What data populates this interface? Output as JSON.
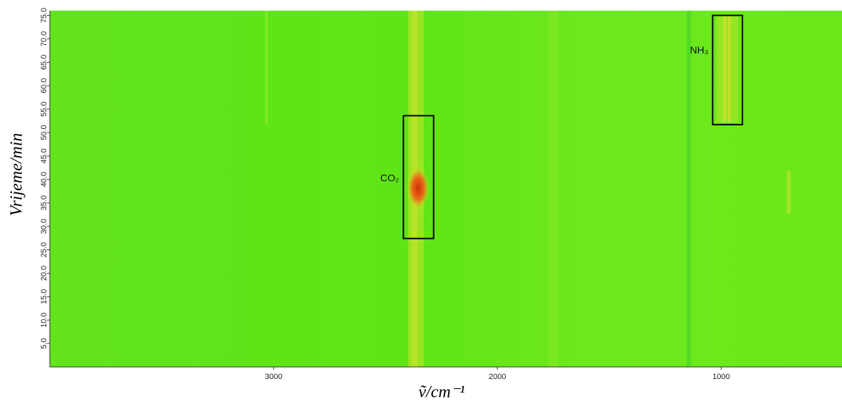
{
  "chart_data": {
    "type": "heatmap",
    "xlabel": "ṽ/cm⁻¹",
    "ylabel": "Vrijeme/min",
    "xlim": [
      4000,
      460
    ],
    "xticks": [
      3000,
      2000,
      1000
    ],
    "ylim": [
      0,
      76
    ],
    "yticks": [
      {
        "value": 5,
        "label": "5.0"
      },
      {
        "value": 10,
        "label": "10.0"
      },
      {
        "value": 15,
        "label": "15.0"
      },
      {
        "value": 20,
        "label": "20.0"
      },
      {
        "value": 25,
        "label": "25.0"
      },
      {
        "value": 30,
        "label": "30.0"
      },
      {
        "value": 35,
        "label": "35.0"
      },
      {
        "value": 40,
        "label": "40.0"
      },
      {
        "value": 45,
        "label": "45.0"
      },
      {
        "value": 50,
        "label": "50.0"
      },
      {
        "value": 55,
        "label": "55.0"
      },
      {
        "value": 60,
        "label": "60.0"
      },
      {
        "value": 65,
        "label": "65.0"
      },
      {
        "value": 70,
        "label": "70.0"
      },
      {
        "value": 75,
        "label": "75.0"
      }
    ],
    "annotations": [
      {
        "label": "CO₂",
        "xrange": [
          2420,
          2285
        ],
        "yrange": [
          27.4,
          53.6
        ]
      },
      {
        "label": "NH₃",
        "xrange": [
          1038,
          905
        ],
        "yrange": [
          51.7,
          75.0
        ]
      }
    ]
  }
}
